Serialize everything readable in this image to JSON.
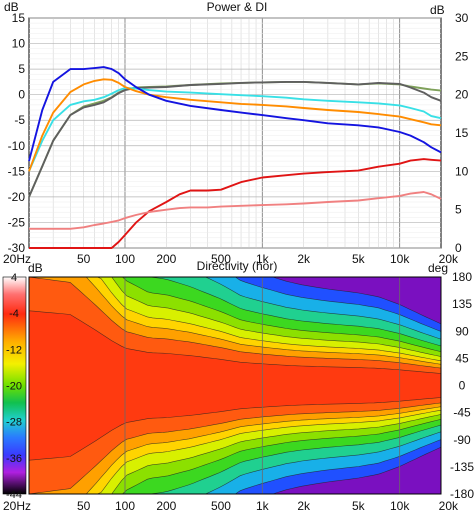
{
  "chart_data": [
    {
      "type": "line",
      "title": "Power & DI",
      "left_unit": "dB",
      "right_unit": "dB",
      "x_scale": "log",
      "xlim": [
        20,
        20000
      ],
      "ylim": [
        -30,
        15
      ],
      "right_ylim": [
        0,
        30
      ],
      "x_ticks": [
        20,
        50,
        100,
        200,
        500,
        1000,
        2000,
        5000,
        10000,
        20000
      ],
      "x_tick_labels": [
        "20Hz",
        "50",
        "100",
        "200",
        "500",
        "1k",
        "2k",
        "5k",
        "10k",
        "20k"
      ],
      "y_ticks": [
        -30,
        -25,
        -20,
        -15,
        -10,
        -5,
        0,
        5,
        10,
        15
      ],
      "y_tick_labels": [
        "-30",
        "-25",
        "-20",
        "-15",
        "-10",
        "-5",
        "0",
        "5",
        "10",
        "15"
      ],
      "right_ticks": [
        0,
        5,
        10,
        15,
        20,
        25,
        30
      ],
      "right_tick_labels": [
        "0",
        "5",
        "10",
        "15",
        "20",
        "25",
        "30"
      ],
      "grid": true,
      "series": [
        {
          "color": "#7fa15a",
          "axis": "left",
          "x": [
            20,
            25,
            30,
            40,
            50,
            60,
            70,
            80,
            90,
            100,
            120,
            150,
            200,
            300,
            500,
            700,
            1000,
            1500,
            2000,
            3000,
            5000,
            7000,
            10000,
            12000,
            15000,
            17000,
            20000
          ],
          "y": [
            -20,
            -14,
            -9,
            -4,
            -2.3,
            -1.7,
            -1.2,
            -0.5,
            0.4,
            1.0,
            1.4,
            1.5,
            1.6,
            1.9,
            2.2,
            2.3,
            2.4,
            2.5,
            2.5,
            2.3,
            2.0,
            2.2,
            2.0,
            1.6,
            1.2,
            1.0,
            0.8
          ]
        },
        {
          "color": "#5f5f5f",
          "axis": "left",
          "x": [
            20,
            25,
            30,
            40,
            50,
            60,
            70,
            80,
            90,
            100,
            120,
            150,
            200,
            300,
            500,
            700,
            1000,
            1500,
            2000,
            3000,
            5000,
            7000,
            10000,
            12000,
            15000,
            17000,
            20000
          ],
          "y": [
            -20,
            -14,
            -9,
            -4,
            -2.5,
            -2,
            -1.5,
            -0.6,
            0.3,
            0.9,
            1.3,
            1.4,
            1.5,
            1.9,
            2.1,
            2.3,
            2.4,
            2.5,
            2.5,
            2.3,
            2.0,
            2.3,
            2.1,
            1.4,
            0.4,
            -0.5,
            -1.2
          ]
        },
        {
          "color": "#38e0e6",
          "axis": "left",
          "x": [
            20,
            25,
            30,
            40,
            50,
            60,
            70,
            80,
            90,
            100,
            120,
            150,
            200,
            300,
            500,
            700,
            1000,
            1500,
            2000,
            3000,
            5000,
            7000,
            10000,
            12000,
            15000,
            17000,
            20000
          ],
          "y": [
            -15,
            -9,
            -5,
            -2,
            -1.3,
            -1,
            -0.5,
            0.2,
            0.9,
            1.3,
            1.2,
            0.9,
            0.6,
            0.4,
            0.1,
            -0.1,
            -0.3,
            -0.6,
            -0.9,
            -1.2,
            -1.5,
            -1.7,
            -2.1,
            -2.6,
            -3.3,
            -4.2,
            -4.6
          ]
        },
        {
          "color": "#ff8c00",
          "axis": "left",
          "x": [
            20,
            25,
            30,
            40,
            50,
            60,
            70,
            80,
            90,
            100,
            120,
            150,
            200,
            300,
            500,
            700,
            1000,
            1500,
            2000,
            3000,
            5000,
            7000,
            10000,
            12000,
            15000,
            17000,
            20000
          ],
          "y": [
            -15,
            -8,
            -3.5,
            0.5,
            2.0,
            2.7,
            3.0,
            2.9,
            2.3,
            1.5,
            0.7,
            0.0,
            -0.5,
            -1.0,
            -1.5,
            -1.8,
            -2.0,
            -2.3,
            -2.6,
            -3.0,
            -3.4,
            -3.8,
            -4.3,
            -4.8,
            -5.4,
            -5.8,
            -6.0
          ]
        },
        {
          "color": "#1414e0",
          "axis": "left",
          "x": [
            20,
            25,
            30,
            40,
            50,
            60,
            70,
            80,
            90,
            100,
            120,
            150,
            200,
            300,
            500,
            700,
            1000,
            1500,
            2000,
            3000,
            5000,
            7000,
            10000,
            12000,
            15000,
            17000,
            20000
          ],
          "y": [
            -13,
            -3,
            2.5,
            5.0,
            5.0,
            5.2,
            5.4,
            5.0,
            4.2,
            3.0,
            1.5,
            0.0,
            -1.2,
            -2.2,
            -3.0,
            -3.5,
            -4.0,
            -4.6,
            -5.0,
            -5.6,
            -6.0,
            -6.4,
            -7.3,
            -8.0,
            -9.3,
            -10.3,
            -11.3
          ]
        },
        {
          "color": "#e01414",
          "axis": "right",
          "x": [
            20,
            30,
            40,
            50,
            60,
            70,
            80,
            90,
            100,
            120,
            150,
            200,
            250,
            300,
            400,
            500,
            700,
            1000,
            1500,
            2000,
            3000,
            5000,
            7000,
            10000,
            12000,
            15000,
            17000,
            20000
          ],
          "y": [
            -10,
            -10,
            -10,
            -10,
            -10,
            -10,
            -0.5,
            0.8,
            1.7,
            3.3,
            4.8,
            6.0,
            7.0,
            7.5,
            7.5,
            7.6,
            8.6,
            9.2,
            9.5,
            9.7,
            9.9,
            10.1,
            10.6,
            11.0,
            11.4,
            11.6,
            11.5,
            11.4
          ]
        },
        {
          "color": "#f08080",
          "axis": "right",
          "x": [
            20,
            30,
            40,
            50,
            60,
            70,
            80,
            90,
            100,
            120,
            150,
            200,
            250,
            300,
            400,
            500,
            700,
            1000,
            1500,
            2000,
            3000,
            5000,
            7000,
            10000,
            12000,
            15000,
            17000,
            20000
          ],
          "y": [
            2.5,
            2.5,
            2.5,
            2.7,
            3.0,
            3.2,
            3.4,
            3.6,
            3.9,
            4.3,
            4.7,
            5.0,
            5.2,
            5.3,
            5.3,
            5.4,
            5.5,
            5.6,
            5.7,
            5.8,
            6.0,
            6.2,
            6.5,
            6.8,
            7.1,
            7.3,
            7.0,
            6.4
          ]
        }
      ]
    },
    {
      "type": "heatmap",
      "title": "Directivity (hor)",
      "left_unit": "dB",
      "right_unit": "deg",
      "x_scale": "log",
      "xlim": [
        20,
        20000
      ],
      "ylim": [
        -180,
        180
      ],
      "x_ticks": [
        20,
        50,
        100,
        200,
        500,
        1000,
        2000,
        5000,
        10000,
        20000
      ],
      "x_tick_labels": [
        "20Hz",
        "50",
        "100",
        "200",
        "500",
        "1k",
        "2k",
        "5k",
        "10k",
        "20k"
      ],
      "y_ticks": [
        180,
        135,
        90,
        45,
        0,
        -45,
        -90,
        -135,
        -180
      ],
      "y_tick_labels": [
        "180",
        "135",
        "90",
        "45",
        "0",
        "-45",
        "-90",
        "-135",
        "-180"
      ],
      "colorbar_ticks": [
        4,
        -4,
        -12,
        -20,
        -28,
        -36,
        -44
      ],
      "colorbar_labels": [
        "4",
        "-4",
        "-12",
        "-20",
        "-28",
        "-36",
        "-44"
      ],
      "colorbar_range": [
        -44,
        4
      ],
      "beamwidth_deg": [
        [
          20,
          200
        ],
        [
          40,
          190
        ],
        [
          60,
          150
        ],
        [
          80,
          120
        ],
        [
          100,
          100
        ],
        [
          150,
          88
        ],
        [
          200,
          86
        ],
        [
          300,
          80
        ],
        [
          500,
          70
        ],
        [
          700,
          62
        ],
        [
          1000,
          58
        ],
        [
          1500,
          54
        ],
        [
          2000,
          52
        ],
        [
          3000,
          50
        ],
        [
          5000,
          48
        ],
        [
          7000,
          46
        ],
        [
          10000,
          42
        ],
        [
          15000,
          36
        ],
        [
          20000,
          32
        ]
      ]
    }
  ]
}
